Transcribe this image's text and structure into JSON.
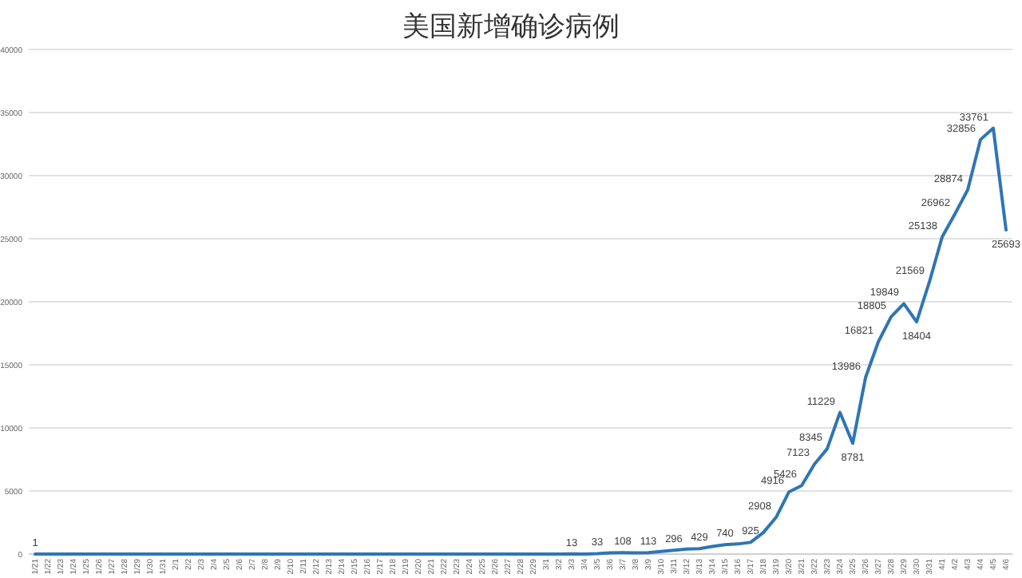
{
  "chart_data": {
    "type": "line",
    "title": "美国新增确诊病例",
    "categories": [
      "1/21",
      "1/22",
      "1/23",
      "1/24",
      "1/25",
      "1/26",
      "1/27",
      "1/28",
      "1/29",
      "1/30",
      "1/31",
      "2/1",
      "2/2",
      "2/3",
      "2/4",
      "2/5",
      "2/6",
      "2/7",
      "2/8",
      "2/9",
      "2/10",
      "2/11",
      "2/12",
      "2/13",
      "2/14",
      "2/15",
      "2/16",
      "2/17",
      "2/18",
      "2/19",
      "2/20",
      "2/21",
      "2/22",
      "2/23",
      "2/24",
      "2/25",
      "2/26",
      "2/27",
      "2/28",
      "2/29",
      "3/1",
      "3/2",
      "3/3",
      "3/4",
      "3/5",
      "3/6",
      "3/7",
      "3/8",
      "3/9",
      "3/10",
      "3/11",
      "3/12",
      "3/13",
      "3/14",
      "3/15",
      "3/16",
      "3/17",
      "3/18",
      "3/19",
      "3/20",
      "3/21",
      "3/22",
      "3/23",
      "3/24",
      "3/25",
      "3/26",
      "3/27",
      "3/28",
      "3/29",
      "3/30",
      "3/31",
      "4/1",
      "4/2",
      "4/3",
      "4/4",
      "4/5",
      "4/6"
    ],
    "series": [
      {
        "color": "#2e75b6",
        "values": [
          1,
          0,
          0,
          0,
          0,
          0,
          0,
          0,
          0,
          0,
          0,
          0,
          0,
          0,
          0,
          0,
          0,
          0,
          0,
          0,
          0,
          0,
          0,
          0,
          0,
          0,
          0,
          0,
          0,
          0,
          0,
          0,
          0,
          0,
          0,
          0,
          0,
          0,
          0,
          0,
          0,
          0,
          13,
          0,
          33,
          100,
          108,
          100,
          113,
          200,
          296,
          400,
          429,
          600,
          740,
          800,
          925,
          1700,
          2908,
          4916,
          5426,
          7123,
          8345,
          11229,
          8781,
          13986,
          16821,
          18805,
          19849,
          18404,
          21569,
          25138,
          26962,
          28874,
          32856,
          33761,
          25693
        ],
        "value_labels": [
          "1",
          null,
          null,
          null,
          null,
          null,
          null,
          null,
          null,
          null,
          null,
          null,
          null,
          null,
          null,
          null,
          null,
          null,
          null,
          null,
          null,
          null,
          null,
          null,
          null,
          null,
          null,
          null,
          null,
          null,
          null,
          null,
          null,
          null,
          null,
          null,
          null,
          null,
          null,
          null,
          null,
          null,
          "13",
          null,
          "33",
          null,
          "108",
          null,
          "113",
          null,
          "296",
          null,
          "429",
          null,
          "740",
          null,
          "925",
          null,
          "2908",
          "4916",
          "5426",
          "7123",
          "8345",
          "11229",
          "8781",
          "13986",
          "16821",
          "18805",
          "19849",
          "18404",
          "21569",
          "25138",
          "26962",
          "28874",
          "32856",
          "33761",
          "25693"
        ]
      }
    ],
    "ylim": [
      0,
      40000
    ],
    "yticks": [
      0,
      5000,
      10000,
      15000,
      20000,
      25000,
      30000,
      35000,
      40000
    ],
    "grid": "y",
    "marker": "none",
    "line_style": "solid"
  }
}
